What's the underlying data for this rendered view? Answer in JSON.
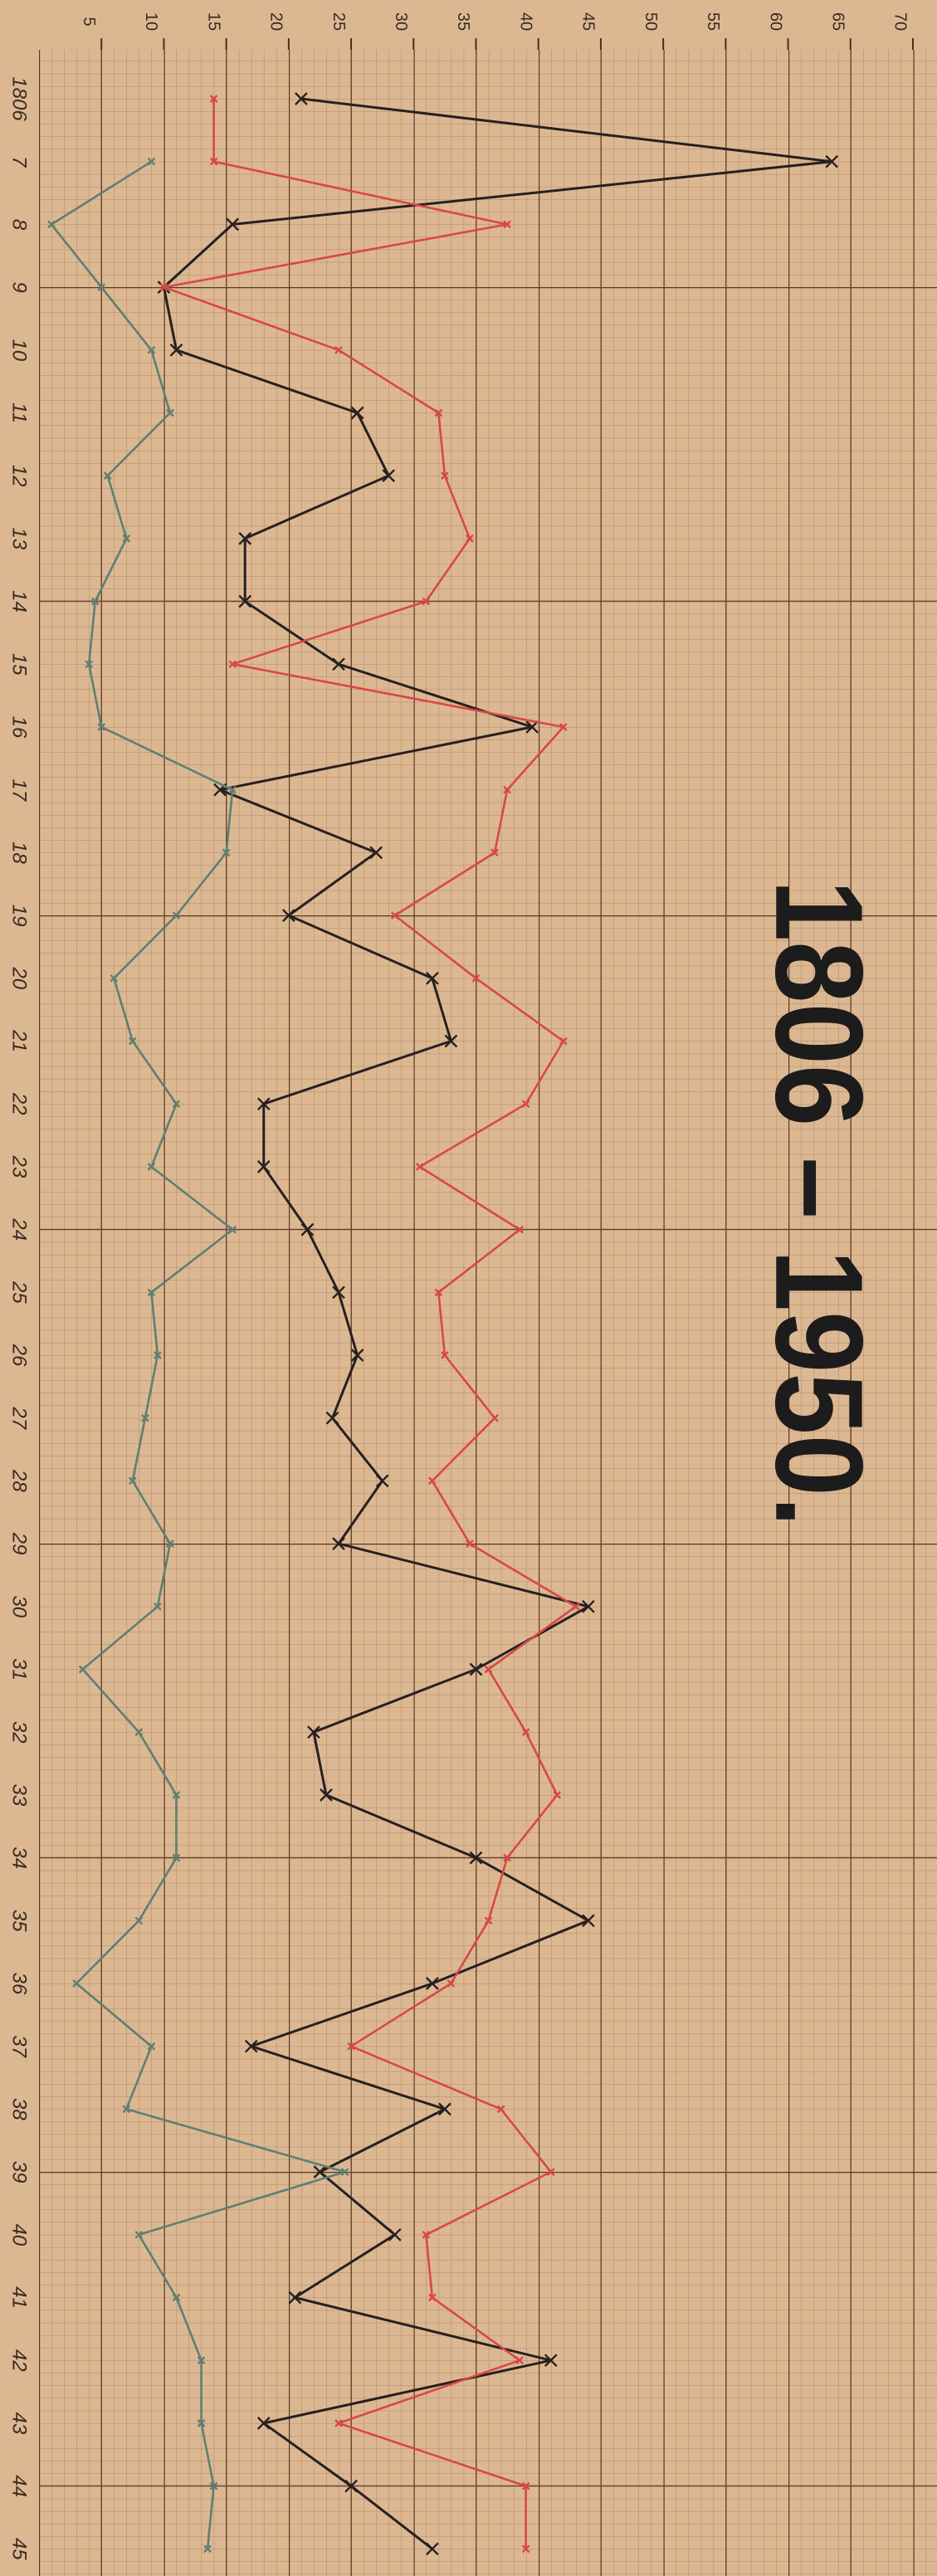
{
  "chart_data": {
    "type": "line",
    "title": "1806 – 1950.",
    "categories": [
      "1806",
      "7",
      "8",
      "9",
      "10",
      "11",
      "12",
      "13",
      "14",
      "15",
      "16",
      "17",
      "18",
      "19",
      "20",
      "21",
      "22",
      "23",
      "24",
      "25",
      "26",
      "27",
      "28",
      "29",
      "30",
      "31",
      "32",
      "33",
      "34",
      "35",
      "36",
      "37",
      "38",
      "39",
      "40",
      "41",
      "42",
      "43",
      "44",
      "45"
    ],
    "series": [
      {
        "color": "#262020",
        "values": [
          21,
          63.5,
          15.5,
          10,
          11,
          25.5,
          28,
          16.5,
          16.5,
          24,
          39.5,
          14.5,
          27,
          20,
          31.5,
          33,
          18,
          18,
          21.5,
          24,
          25.5,
          23.5,
          27.5,
          24,
          44,
          35,
          22,
          23,
          35,
          44,
          31.5,
          17,
          32.5,
          22.5,
          28.5,
          20.5,
          41,
          18,
          25,
          31.5
        ]
      },
      {
        "color": "#d8474a",
        "values": [
          14,
          14,
          37.5,
          10,
          24,
          32,
          32.5,
          34.5,
          31,
          15.5,
          42,
          37.5,
          36.5,
          28.5,
          35,
          42,
          39,
          30.5,
          38.5,
          32,
          32.5,
          36.5,
          31.5,
          34.5,
          43,
          36,
          39,
          41.5,
          37.5,
          36,
          33,
          25,
          37,
          41,
          31,
          31.5,
          38.5,
          24,
          39,
          39
        ]
      },
      {
        "color": "#5e7f72",
        "values": [
          null,
          9,
          1,
          5,
          9,
          10.5,
          5.5,
          7,
          4.5,
          4,
          5,
          15.5,
          15,
          11,
          6,
          7.5,
          11,
          9,
          15.5,
          9,
          9.5,
          8.5,
          7.5,
          10.5,
          9.5,
          3.5,
          8,
          11,
          11,
          8,
          3,
          9,
          7,
          24.5,
          8,
          11,
          13,
          13,
          14,
          13.5
        ]
      }
    ],
    "ylim": [
      0,
      70
    ],
    "yticks": [
      5,
      10,
      15,
      20,
      25,
      30,
      35,
      40,
      45,
      50,
      55,
      60,
      65,
      70
    ],
    "grid": true
  }
}
